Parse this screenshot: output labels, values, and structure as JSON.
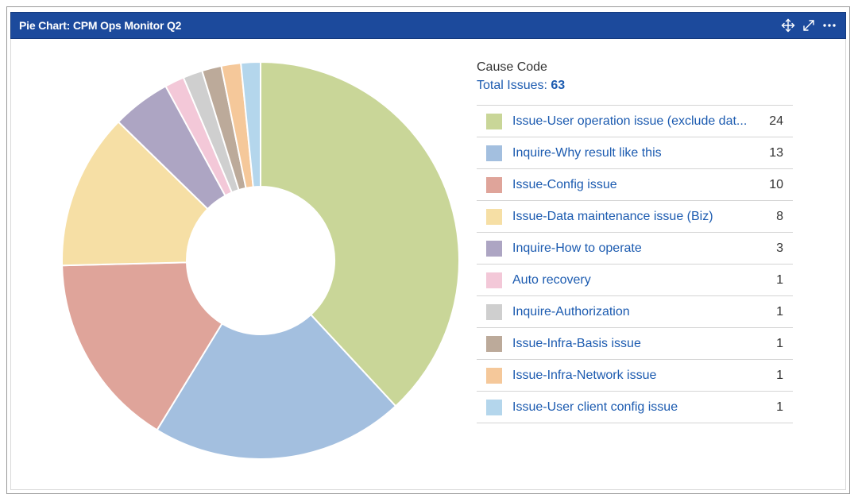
{
  "gadget": {
    "title": "Pie Chart: CPM Ops Monitor Q2",
    "icons": [
      "move-icon",
      "expand-icon",
      "more-options-icon"
    ]
  },
  "legend": {
    "title": "Cause Code",
    "total_label": "Total Issues:",
    "total_value": "63",
    "items": [
      {
        "label": "Issue-User operation issue (exclude dat...",
        "count": "24"
      },
      {
        "label": "Inquire-Why result like this",
        "count": "13"
      },
      {
        "label": "Issue-Config issue",
        "count": "10"
      },
      {
        "label": "Issue-Data maintenance issue (Biz)",
        "count": "8"
      },
      {
        "label": "Inquire-How to operate",
        "count": "3"
      },
      {
        "label": "Auto recovery",
        "count": "1"
      },
      {
        "label": "Inquire-Authorization",
        "count": "1"
      },
      {
        "label": "Issue-Infra-Basis issue",
        "count": "1"
      },
      {
        "label": "Issue-Infra-Network issue",
        "count": "1"
      },
      {
        "label": "Issue-User client config issue",
        "count": "1"
      }
    ]
  },
  "colors": {
    "titlebar": "#1c4a9c",
    "link": "#1c5bb0"
  },
  "chart_data": {
    "type": "pie",
    "donut": true,
    "title": "Cause Code",
    "total": 63,
    "categories": [
      "Issue-User operation issue (exclude dat...",
      "Inquire-Why result like this",
      "Issue-Config issue",
      "Issue-Data maintenance issue (Biz)",
      "Inquire-How to operate",
      "Auto recovery",
      "Inquire-Authorization",
      "Issue-Infra-Basis issue",
      "Issue-Infra-Network issue",
      "Issue-User client config issue"
    ],
    "values": [
      24,
      13,
      10,
      8,
      3,
      1,
      1,
      1,
      1,
      1
    ],
    "colors": [
      "#c9d698",
      "#a3bfdf",
      "#dfa49a",
      "#f6dfa5",
      "#ada5c3",
      "#f3c8d8",
      "#cfcfcf",
      "#bcaa9a",
      "#f5c89a",
      "#b4d6ec"
    ],
    "legend_position": "right"
  }
}
